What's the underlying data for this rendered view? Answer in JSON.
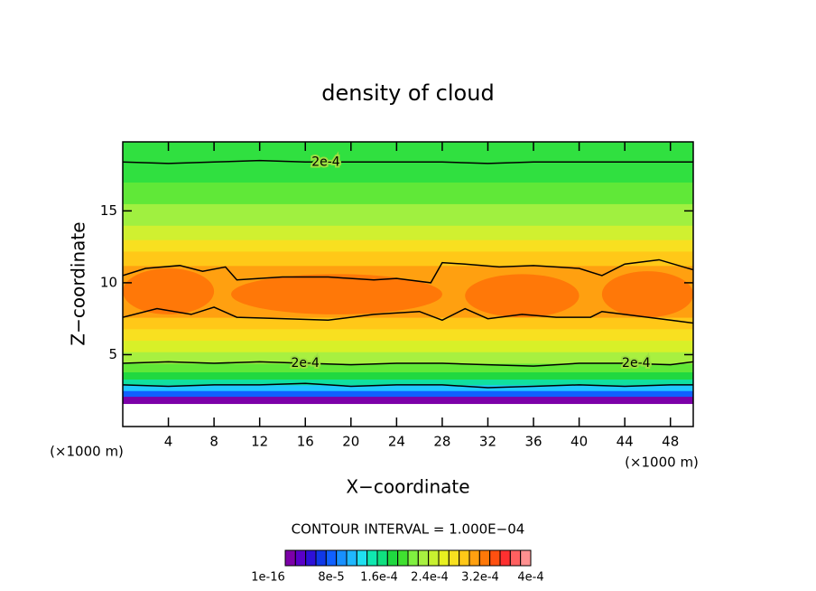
{
  "chart_data": {
    "type": "contour",
    "title": "density of cloud",
    "x_label": "X−coordinate",
    "y_label": "Z−coordinate",
    "x_unit_left": "(×1000 m)",
    "x_unit_right": "(×1000 m)",
    "contour_interval": "CONTOUR INTERVAL = 1.000E−04",
    "xlim": [
      0,
      50
    ],
    "ylim": [
      0,
      19.8
    ],
    "xticks": [
      4,
      8,
      12,
      16,
      20,
      24,
      28,
      32,
      36,
      40,
      44,
      48
    ],
    "yticks": [
      5,
      10,
      15
    ],
    "bands": {
      "z": [
        1.6,
        2.1,
        2.5,
        2.9,
        3.3,
        3.8,
        4.4,
        5.2,
        6.0,
        6.8,
        7.6,
        11.2,
        12.2,
        13.0,
        14.0,
        15.5,
        17.0,
        19.8
      ],
      "colors": [
        "#7c00a8",
        "#1060ff",
        "#20c8ff",
        "#10e0a0",
        "#20d840",
        "#60e838",
        "#a8f040",
        "#d8f028",
        "#f8e020",
        "#ffc818",
        "#ffa010",
        "#ffc818",
        "#f8e020",
        "#d0f030",
        "#a0f040",
        "#60e838",
        "#30e040"
      ]
    },
    "patches": {
      "color": "#ff7808",
      "items": [
        {
          "x": [
            0,
            8
          ],
          "z": [
            7.8,
            11
          ]
        },
        {
          "x": [
            9.5,
            28
          ],
          "z": [
            7.8,
            10.6
          ]
        },
        {
          "x": [
            30,
            40
          ],
          "z": [
            7.6,
            10.6
          ]
        },
        {
          "x": [
            42,
            50
          ],
          "z": [
            7.6,
            10.8
          ]
        }
      ]
    },
    "contours": [
      {
        "label": "2e-4",
        "label_x": [
          17.8
        ],
        "x": [
          0,
          4,
          8,
          12,
          16,
          20,
          24,
          28,
          32,
          36,
          40,
          44,
          48,
          50
        ],
        "z": [
          18.4,
          18.3,
          18.4,
          18.5,
          18.4,
          18.4,
          18.4,
          18.4,
          18.3,
          18.4,
          18.4,
          18.4,
          18.4,
          18.4
        ]
      },
      {
        "label": "2e-4",
        "label_x": [
          16,
          45
        ],
        "x": [
          0,
          4,
          8,
          12,
          16,
          20,
          24,
          28,
          32,
          36,
          40,
          44,
          48,
          50
        ],
        "z": [
          4.4,
          4.5,
          4.4,
          4.5,
          4.4,
          4.3,
          4.4,
          4.4,
          4.3,
          4.2,
          4.4,
          4.4,
          4.3,
          4.5
        ]
      },
      {
        "x": [
          0,
          3,
          6,
          8,
          10,
          14,
          18,
          22,
          26,
          28,
          30,
          32,
          35,
          38,
          41,
          42,
          45,
          48,
          50
        ],
        "z": [
          7.6,
          8.2,
          7.8,
          8.3,
          7.6,
          7.5,
          7.4,
          7.8,
          8.0,
          7.4,
          8.2,
          7.5,
          7.8,
          7.6,
          7.6,
          8.0,
          7.7,
          7.4,
          7.2
        ]
      },
      {
        "x": [
          0,
          2,
          5,
          7,
          9,
          10,
          14,
          18,
          22,
          24,
          27,
          28,
          30,
          33,
          36,
          40,
          42,
          44,
          47,
          50
        ],
        "z": [
          10.5,
          11.0,
          11.2,
          10.8,
          11.1,
          10.2,
          10.4,
          10.4,
          10.2,
          10.3,
          10.0,
          11.4,
          11.3,
          11.1,
          11.2,
          11.0,
          10.5,
          11.3,
          11.6,
          10.9
        ]
      },
      {
        "x": [
          0,
          4,
          8,
          12,
          16,
          20,
          24,
          28,
          32,
          36,
          40,
          44,
          48,
          50
        ],
        "z": [
          2.9,
          2.8,
          2.9,
          2.9,
          3.0,
          2.8,
          2.9,
          2.9,
          2.7,
          2.8,
          2.9,
          2.8,
          2.9,
          2.9
        ]
      }
    ],
    "colorbar": {
      "colors": [
        "#7c00a8",
        "#5a00c8",
        "#2e10d8",
        "#1038e8",
        "#1060ff",
        "#1890ff",
        "#20b8ff",
        "#20e0f0",
        "#10e8b0",
        "#10e080",
        "#20d840",
        "#40e030",
        "#80f040",
        "#a8f040",
        "#c8f030",
        "#e8f020",
        "#f8e020",
        "#ffc818",
        "#ffa010",
        "#ff7808",
        "#ff5010",
        "#ff3030",
        "#ff6060",
        "#ff9090"
      ],
      "labels": [
        "1e-16",
        "8e-5",
        "1.6e-4",
        "2.4e-4",
        "3.2e-4",
        "4e-4"
      ]
    }
  }
}
